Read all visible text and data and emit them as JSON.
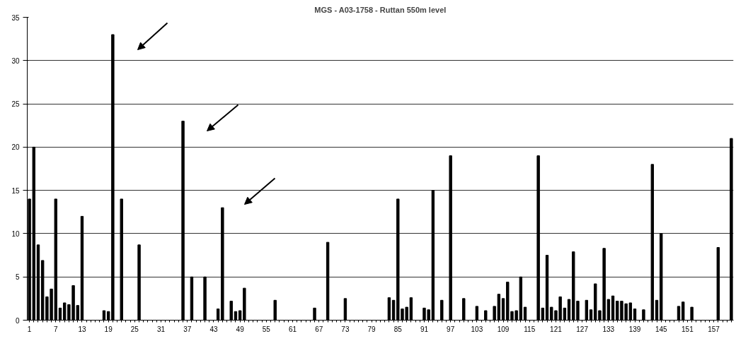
{
  "chart_data": {
    "type": "bar",
    "title": "MGS - A03-1758 - Ruttan 550m level",
    "categories": [
      "1",
      null,
      null,
      null,
      null,
      null,
      "7",
      null,
      null,
      null,
      null,
      null,
      "13",
      null,
      null,
      null,
      null,
      null,
      "19",
      null,
      null,
      null,
      null,
      null,
      "25",
      null,
      null,
      null,
      null,
      null,
      "31",
      null,
      null,
      null,
      null,
      null,
      "37",
      null,
      null,
      null,
      null,
      null,
      "43",
      null,
      null,
      null,
      null,
      null,
      "49",
      null,
      null,
      null,
      null,
      null,
      "55",
      null,
      null,
      null,
      null,
      null,
      "61",
      null,
      null,
      null,
      null,
      null,
      "67",
      null,
      null,
      null,
      null,
      null,
      "73",
      null,
      null,
      null,
      null,
      null,
      "79",
      null,
      null,
      null,
      null,
      null,
      "85",
      null,
      null,
      null,
      null,
      null,
      "91",
      null,
      null,
      null,
      null,
      null,
      "97",
      null,
      null,
      null,
      null,
      null,
      "103",
      null,
      null,
      null,
      null,
      null,
      "109",
      null,
      null,
      null,
      null,
      null,
      "115",
      null,
      null,
      null,
      null,
      null,
      "121",
      null,
      null,
      null,
      null,
      null,
      "127",
      null,
      null,
      null,
      null,
      null,
      "133",
      null,
      null,
      null,
      null,
      null,
      "139",
      null,
      null,
      null,
      null,
      null,
      "145",
      null,
      null,
      null,
      null,
      null,
      "151",
      null,
      null,
      null,
      null,
      null,
      "157",
      null,
      null,
      null,
      null
    ],
    "values": [
      14,
      20,
      8.7,
      6.9,
      2.7,
      3.6,
      14,
      1.4,
      2.0,
      1.8,
      4.0,
      1.7,
      12,
      0,
      0,
      0,
      0,
      1.1,
      1.0,
      33,
      0,
      14,
      0,
      0,
      0,
      8.7,
      0,
      0,
      0,
      0,
      0,
      0,
      0,
      0,
      0,
      23,
      0,
      5,
      0,
      0,
      5,
      0,
      0,
      1.3,
      13,
      0,
      2.2,
      1.0,
      1.1,
      3.7,
      0,
      0,
      0,
      0,
      0,
      0,
      2.3,
      0,
      0,
      0,
      0,
      0,
      0,
      0,
      0,
      1.4,
      0,
      0,
      9,
      0,
      0,
      0,
      2.5,
      0,
      0,
      0,
      0,
      0,
      0,
      0,
      0,
      0,
      2.6,
      2.3,
      14,
      1.3,
      1.5,
      2.6,
      0,
      0,
      1.4,
      1.2,
      15,
      0,
      2.3,
      0,
      19,
      0,
      0,
      2.5,
      0,
      0,
      1.6,
      0,
      1.1,
      0,
      1.6,
      3.0,
      2.5,
      4.4,
      1.0,
      1.1,
      5,
      1.5,
      0,
      0,
      19,
      1.4,
      7.5,
      1.5,
      1.1,
      2.7,
      1.4,
      2.4,
      7.9,
      2.2,
      0,
      2.3,
      1.2,
      4.2,
      1.1,
      8.3,
      2.4,
      2.8,
      2.2,
      2.2,
      1.9,
      2.0,
      1.3,
      0,
      1.2,
      0,
      18,
      2.3,
      10,
      0,
      0,
      0,
      1.6,
      2.1,
      0,
      1.5,
      0,
      0,
      0,
      0,
      0,
      8.4,
      0,
      0,
      21
    ],
    "color": "#000000",
    "ylim": [
      0,
      35
    ],
    "yticks": [
      0,
      5,
      10,
      15,
      20,
      25,
      30,
      35
    ],
    "grid": "y"
  }
}
